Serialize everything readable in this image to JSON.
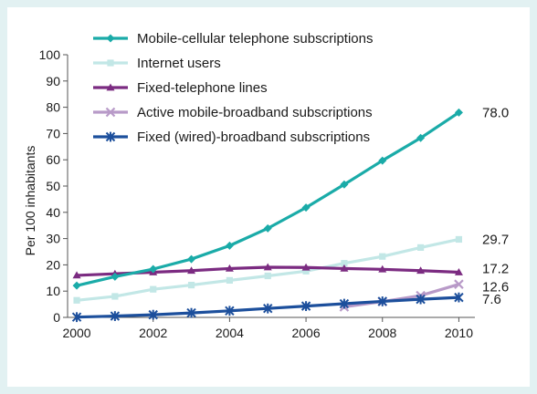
{
  "chart_data": {
    "type": "line",
    "xlabel": "",
    "ylabel": "Per 100 inhabitants",
    "xlim": [
      2000,
      2010
    ],
    "ylim": [
      0,
      100
    ],
    "x_ticks": [
      2000,
      2002,
      2004,
      2006,
      2008,
      2010
    ],
    "y_ticks": [
      0,
      10,
      20,
      30,
      40,
      50,
      60,
      70,
      80,
      90,
      100
    ],
    "grid": false,
    "legend_position": "top-left",
    "series": [
      {
        "name": "Mobile-cellular telephone subscriptions",
        "color": "#1aaba8",
        "marker": "diamond",
        "x": [
          2000,
          2001,
          2002,
          2003,
          2004,
          2005,
          2006,
          2007,
          2008,
          2009,
          2010
        ],
        "values": [
          12.1,
          15.5,
          18.4,
          22.2,
          27.3,
          33.9,
          41.8,
          50.6,
          59.7,
          68.3,
          78.0
        ],
        "end_label": "78.0"
      },
      {
        "name": "Internet users",
        "color": "#c2e7e6",
        "marker": "square",
        "x": [
          2000,
          2001,
          2002,
          2003,
          2004,
          2005,
          2006,
          2007,
          2008,
          2009,
          2010
        ],
        "values": [
          6.5,
          8.0,
          10.7,
          12.3,
          14.1,
          15.8,
          17.6,
          20.6,
          23.2,
          26.6,
          29.7
        ],
        "end_label": "29.7"
      },
      {
        "name": "Fixed-telephone lines",
        "color": "#7b2b81",
        "marker": "triangle",
        "x": [
          2000,
          2001,
          2002,
          2003,
          2004,
          2005,
          2006,
          2007,
          2008,
          2009,
          2010
        ],
        "values": [
          16.0,
          16.6,
          17.2,
          17.8,
          18.6,
          19.1,
          19.0,
          18.6,
          18.3,
          17.8,
          17.2
        ],
        "end_label": "17.2"
      },
      {
        "name": "Active mobile-broadband subscriptions",
        "color": "#b89ac8",
        "marker": "x",
        "x": [
          2007,
          2008,
          2009,
          2010
        ],
        "values": [
          4.0,
          6.0,
          8.3,
          12.6
        ],
        "end_label": "12.6"
      },
      {
        "name": "Fixed (wired)-broadband subscriptions",
        "color": "#1c4f9c",
        "marker": "star",
        "x": [
          2000,
          2001,
          2002,
          2003,
          2004,
          2005,
          2006,
          2007,
          2008,
          2009,
          2010
        ],
        "values": [
          0.1,
          0.5,
          1.0,
          1.7,
          2.5,
          3.4,
          4.3,
          5.2,
          6.1,
          6.9,
          7.6
        ],
        "end_label": "7.6"
      }
    ]
  }
}
